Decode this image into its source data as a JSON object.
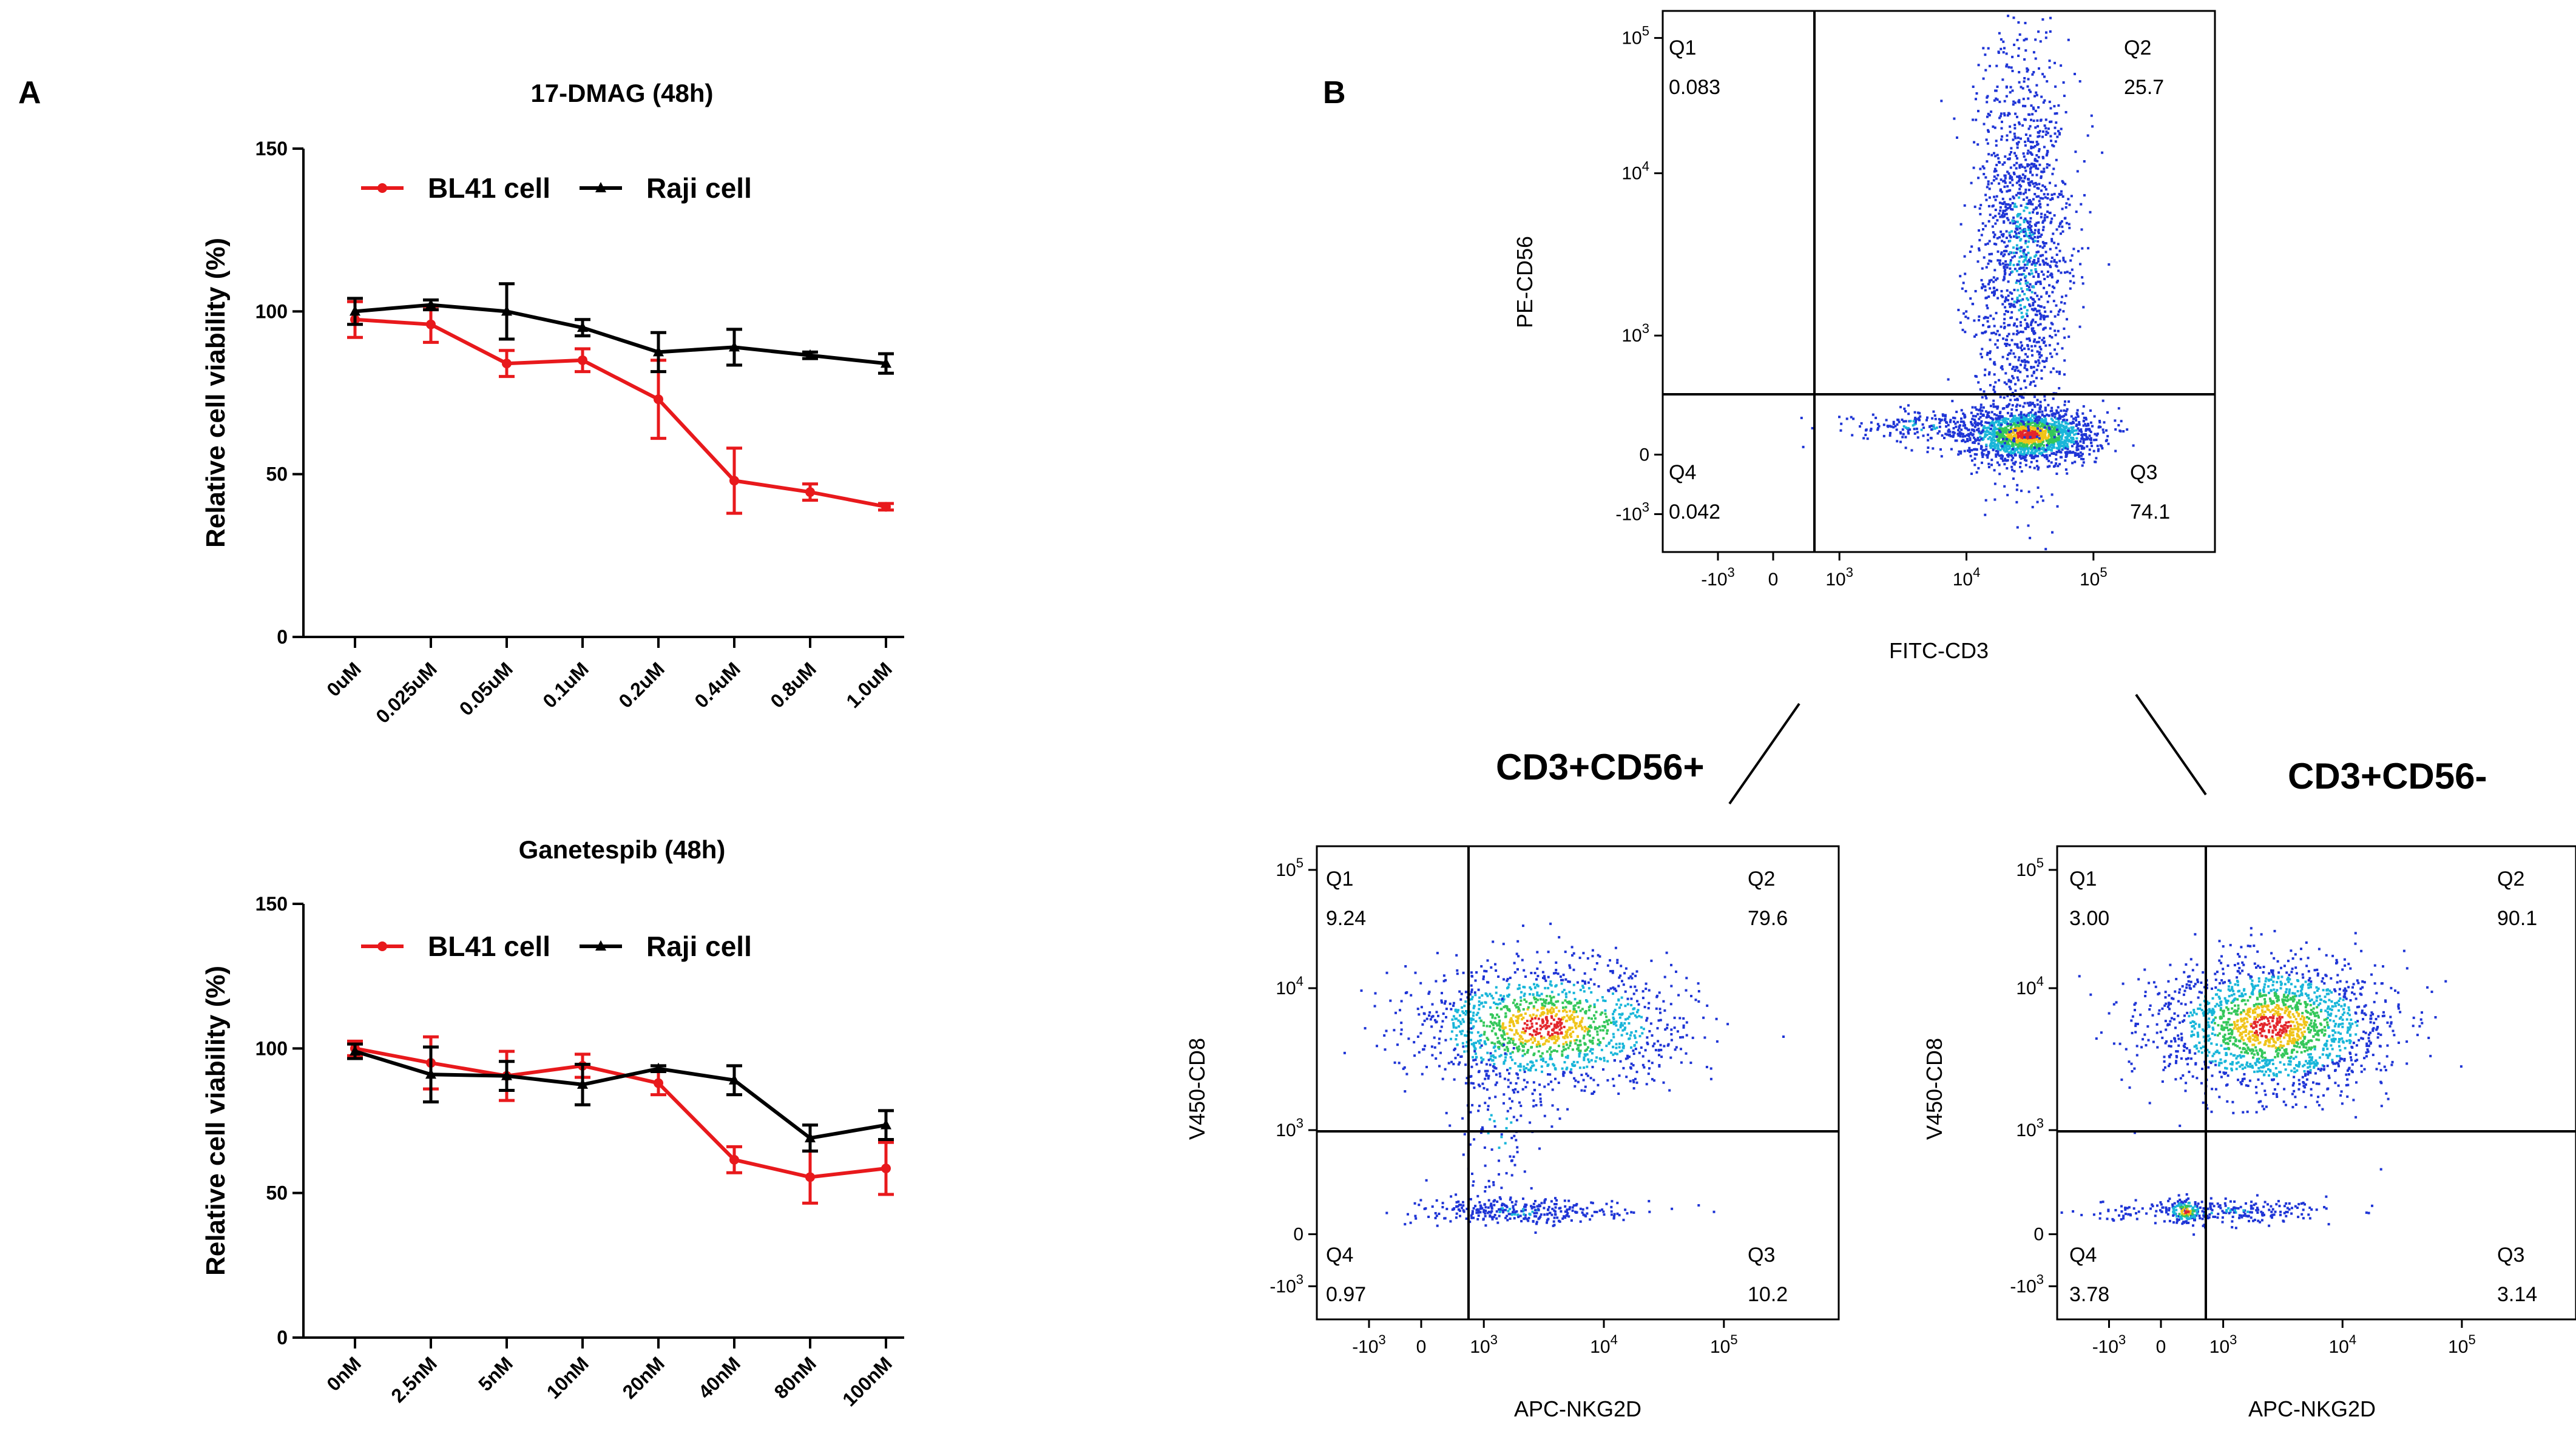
{
  "panels": {
    "a": "A",
    "b": "B"
  },
  "chart_data": [
    {
      "type": "line",
      "title": "17-DMAG (48h)",
      "ylabel": "Relative cell viability (%)",
      "xlabel": "",
      "ylim": [
        0,
        150
      ],
      "yticks": [
        0,
        50,
        100,
        150
      ],
      "categories": [
        "0uM",
        "0.025uM",
        "0.05uM",
        "0.1uM",
        "0.2uM",
        "0.4uM",
        "0.8uM",
        "1.0uM"
      ],
      "legend_position": "top-left",
      "series": [
        {
          "name": "BL41 cell",
          "color": "#e8191c",
          "marker": "circle",
          "values": [
            97.5,
            96,
            84,
            85,
            73,
            48,
            44.5,
            40
          ],
          "errors": [
            5.5,
            5.5,
            4,
            3.5,
            12,
            10,
            2.5,
            1
          ]
        },
        {
          "name": "Raji cell",
          "color": "#000000",
          "marker": "triangle",
          "values": [
            100,
            102,
            100,
            95,
            87.5,
            89,
            86.5,
            84
          ],
          "errors": [
            4,
            1.5,
            8.5,
            2.5,
            6,
            5.5,
            1,
            3
          ]
        }
      ]
    },
    {
      "type": "line",
      "title": "Ganetespib (48h)",
      "ylabel": "Relative cell viability (%)",
      "xlabel": "",
      "ylim": [
        0,
        150
      ],
      "yticks": [
        0,
        50,
        100,
        150
      ],
      "categories": [
        "0nM",
        "2.5nM",
        "5nM",
        "10nM",
        "20nM",
        "40nM",
        "80nM",
        "100nM"
      ],
      "legend_position": "top-left",
      "series": [
        {
          "name": "BL41 cell",
          "color": "#e8191c",
          "marker": "circle",
          "values": [
            100,
            95,
            90.5,
            94,
            88,
            61.5,
            55.5,
            58.5
          ],
          "errors": [
            2.5,
            9,
            8.5,
            4,
            4,
            4.5,
            9,
            9
          ]
        },
        {
          "name": "Raji cell",
          "color": "#000000",
          "marker": "triangle",
          "values": [
            99,
            91,
            90.5,
            87.5,
            93,
            89,
            69,
            73.5
          ],
          "errors": [
            2.5,
            9.5,
            5,
            7,
            1,
            5,
            4.5,
            5
          ]
        }
      ]
    },
    {
      "type": "scatter",
      "subtype": "flow-cytometry-density",
      "xlabel": "FITC-CD3",
      "ylabel": "PE-CD56",
      "xticks": [
        "-10^3",
        "0",
        "10^3",
        "10^4",
        "10^5"
      ],
      "yticks": [
        "-10^3",
        "0",
        "10^3",
        "10^4",
        "10^5"
      ],
      "quadrants": [
        {
          "label": "Q1",
          "value": "0.083"
        },
        {
          "label": "Q2",
          "value": "25.7"
        },
        {
          "label": "Q3",
          "value": "74.1"
        },
        {
          "label": "Q4",
          "value": "0.042"
        }
      ]
    },
    {
      "type": "scatter",
      "subtype": "flow-cytometry-density",
      "title": "CD3+CD56+",
      "xlabel": "APC-NKG2D",
      "ylabel": "V450-CD8",
      "xticks": [
        "-10^3",
        "0",
        "10^3",
        "10^4",
        "10^5"
      ],
      "yticks": [
        "-10^3",
        "0",
        "10^3",
        "10^4",
        "10^5"
      ],
      "quadrants": [
        {
          "label": "Q1",
          "value": "9.24"
        },
        {
          "label": "Q2",
          "value": "79.6"
        },
        {
          "label": "Q3",
          "value": "10.2"
        },
        {
          "label": "Q4",
          "value": "0.97"
        }
      ]
    },
    {
      "type": "scatter",
      "subtype": "flow-cytometry-density",
      "title": "CD3+CD56-",
      "xlabel": "APC-NKG2D",
      "ylabel": "V450-CD8",
      "xticks": [
        "-10^3",
        "0",
        "10^3",
        "10^4",
        "10^5"
      ],
      "yticks": [
        "-10^3",
        "0",
        "10^3",
        "10^4",
        "10^5"
      ],
      "quadrants": [
        {
          "label": "Q1",
          "value": "3.00"
        },
        {
          "label": "Q2",
          "value": "90.1"
        },
        {
          "label": "Q3",
          "value": "3.14"
        },
        {
          "label": "Q4",
          "value": "3.78"
        }
      ]
    }
  ]
}
